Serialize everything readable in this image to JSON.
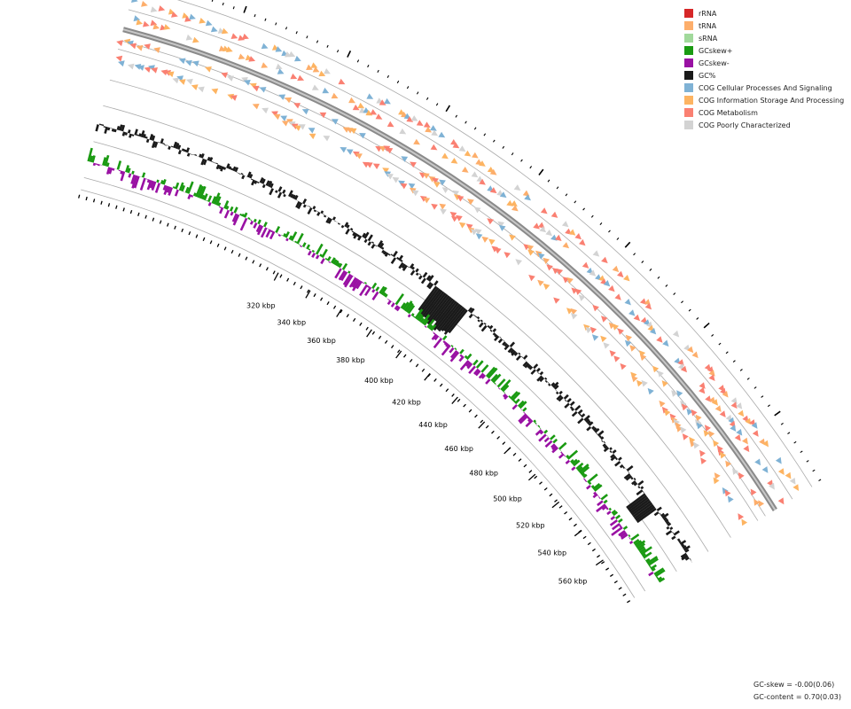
{
  "legend": [
    {
      "label": "rRNA",
      "color": "#d62728"
    },
    {
      "label": "tRNA",
      "color": "#fdae6b"
    },
    {
      "label": "sRNA",
      "color": "#a1d99b"
    },
    {
      "label": "GCskew+",
      "color": "#1a9a12"
    },
    {
      "label": "GCskew-",
      "color": "#9911a3"
    },
    {
      "label": "GC%",
      "color": "#1a1a1a"
    },
    {
      "label": "COG Cellular Processes And Signaling",
      "color": "#7fb2d5"
    },
    {
      "label": "COG Information Storage And Processing",
      "color": "#fdb462"
    },
    {
      "label": "COG Metabolism",
      "color": "#fa8072"
    },
    {
      "label": "COG Poorly Characterized",
      "color": "#d3d3d3"
    }
  ],
  "axis": {
    "unit": "kbp",
    "tick_labels": [
      "320 kbp",
      "340 kbp",
      "360 kbp",
      "380 kbp",
      "400 kbp",
      "420 kbp",
      "440 kbp",
      "460 kbp",
      "480 kbp",
      "500 kbp",
      "520 kbp",
      "540 kbp",
      "560 kbp"
    ]
  },
  "stats": {
    "gc_skew": "GC-skew = -0.00(0.06)",
    "gc_content": "GC-content = 0.70(0.03)"
  }
}
